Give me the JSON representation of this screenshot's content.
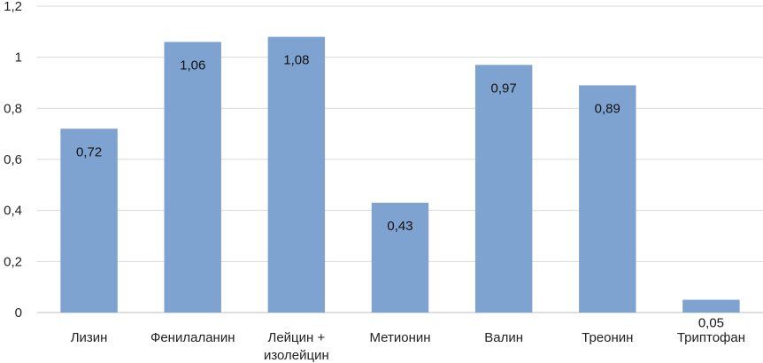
{
  "chart_data": {
    "type": "bar",
    "categories": [
      "Лизин",
      "Фенилаланин",
      "Лейцин + изолейцин",
      "Метионин",
      "Валин",
      "Треонин",
      "Триптофан"
    ],
    "category_lines": [
      [
        "Лизин"
      ],
      [
        "Фенилаланин"
      ],
      [
        "Лейцин +",
        "изолейцин"
      ],
      [
        "Метионин"
      ],
      [
        "Валин"
      ],
      [
        "Треонин"
      ],
      [
        "Триптофан"
      ]
    ],
    "values": [
      0.72,
      1.06,
      1.08,
      0.43,
      0.97,
      0.89,
      0.05
    ],
    "value_labels": [
      "0,72",
      "1,06",
      "1,08",
      "0,43",
      "0,97",
      "0,89",
      "0,05"
    ],
    "y_ticks": [
      "0",
      "0,2",
      "0,4",
      "0,6",
      "0,8",
      "1",
      "1,2"
    ],
    "y_tick_values": [
      0,
      0.2,
      0.4,
      0.6,
      0.8,
      1.0,
      1.2
    ],
    "ylim": [
      0,
      1.2
    ],
    "grid": true,
    "legend": "none",
    "bar_color": "#7fa3d0"
  }
}
